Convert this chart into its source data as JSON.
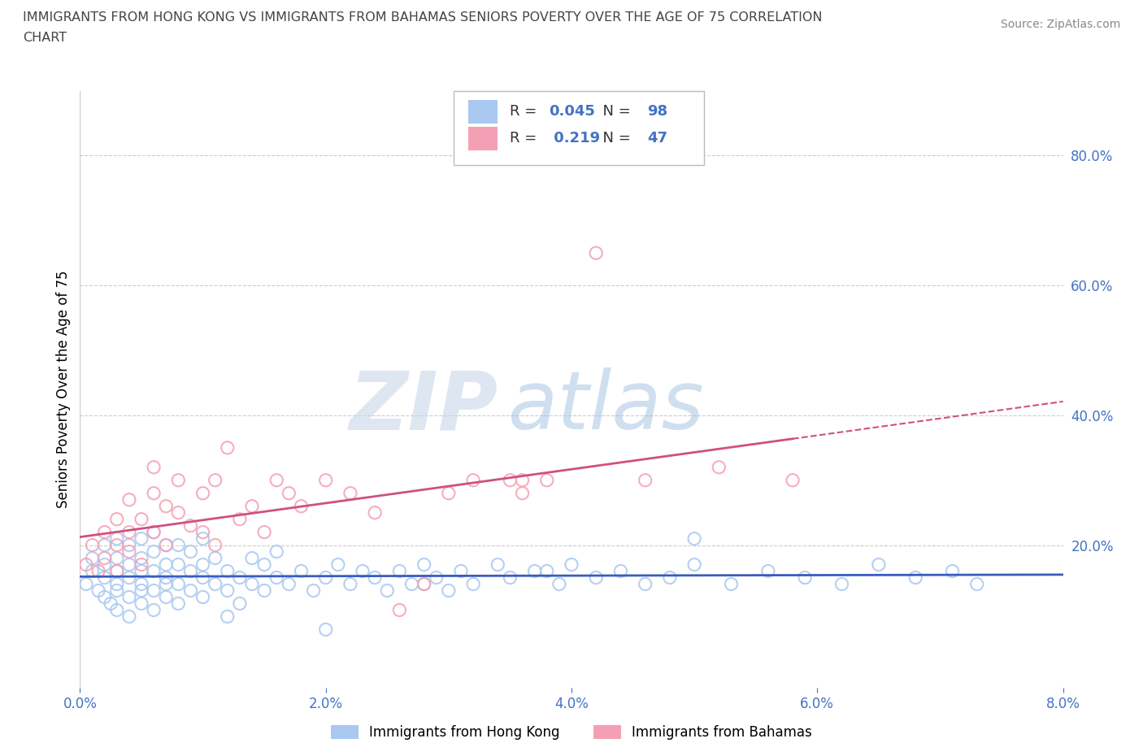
{
  "title_line1": "IMMIGRANTS FROM HONG KONG VS IMMIGRANTS FROM BAHAMAS SENIORS POVERTY OVER THE AGE OF 75 CORRELATION",
  "title_line2": "CHART",
  "source_text": "Source: ZipAtlas.com",
  "ylabel": "Seniors Poverty Over the Age of 75",
  "xlim": [
    0.0,
    0.08
  ],
  "ylim": [
    -0.02,
    0.9
  ],
  "xtick_labels": [
    "0.0%",
    "2.0%",
    "4.0%",
    "6.0%",
    "8.0%"
  ],
  "xtick_values": [
    0.0,
    0.02,
    0.04,
    0.06,
    0.08
  ],
  "ytick_labels": [
    "20.0%",
    "40.0%",
    "60.0%",
    "80.0%"
  ],
  "ytick_values": [
    0.2,
    0.4,
    0.6,
    0.8
  ],
  "hk_color": "#a8c8f0",
  "bah_color": "#f4a0b4",
  "hk_line_color": "#3a5bbf",
  "bah_line_color": "#d05080",
  "hk_R": 0.045,
  "hk_N": 98,
  "bah_R": 0.219,
  "bah_N": 47,
  "legend_label_hk": "Immigrants from Hong Kong",
  "legend_label_bah": "Immigrants from Bahamas",
  "watermark_zip": "ZIP",
  "watermark_atlas": "atlas",
  "background_color": "#ffffff",
  "grid_color": "#cccccc",
  "title_color": "#444444",
  "axis_label_color": "#4472c4",
  "hk_scatter_x": [
    0.0005,
    0.001,
    0.001,
    0.0015,
    0.002,
    0.002,
    0.002,
    0.002,
    0.0025,
    0.003,
    0.003,
    0.003,
    0.003,
    0.003,
    0.003,
    0.004,
    0.004,
    0.004,
    0.004,
    0.004,
    0.005,
    0.005,
    0.005,
    0.005,
    0.005,
    0.005,
    0.006,
    0.006,
    0.006,
    0.006,
    0.006,
    0.007,
    0.007,
    0.007,
    0.007,
    0.007,
    0.008,
    0.008,
    0.008,
    0.008,
    0.009,
    0.009,
    0.009,
    0.01,
    0.01,
    0.01,
    0.01,
    0.011,
    0.011,
    0.012,
    0.012,
    0.013,
    0.013,
    0.014,
    0.014,
    0.015,
    0.015,
    0.016,
    0.016,
    0.017,
    0.018,
    0.019,
    0.02,
    0.021,
    0.022,
    0.023,
    0.024,
    0.025,
    0.026,
    0.027,
    0.028,
    0.029,
    0.03,
    0.031,
    0.032,
    0.034,
    0.035,
    0.037,
    0.039,
    0.04,
    0.042,
    0.044,
    0.046,
    0.048,
    0.05,
    0.053,
    0.056,
    0.059,
    0.062,
    0.065,
    0.068,
    0.071,
    0.073,
    0.05,
    0.038,
    0.028,
    0.02,
    0.012
  ],
  "hk_scatter_y": [
    0.14,
    0.16,
    0.18,
    0.13,
    0.12,
    0.15,
    0.17,
    0.2,
    0.11,
    0.1,
    0.13,
    0.16,
    0.18,
    0.21,
    0.14,
    0.09,
    0.12,
    0.15,
    0.17,
    0.2,
    0.11,
    0.13,
    0.16,
    0.18,
    0.21,
    0.14,
    0.1,
    0.13,
    0.16,
    0.19,
    0.22,
    0.12,
    0.15,
    0.17,
    0.2,
    0.14,
    0.11,
    0.14,
    0.17,
    0.2,
    0.13,
    0.16,
    0.19,
    0.12,
    0.15,
    0.17,
    0.21,
    0.14,
    0.18,
    0.13,
    0.16,
    0.11,
    0.15,
    0.14,
    0.18,
    0.13,
    0.17,
    0.15,
    0.19,
    0.14,
    0.16,
    0.13,
    0.15,
    0.17,
    0.14,
    0.16,
    0.15,
    0.13,
    0.16,
    0.14,
    0.17,
    0.15,
    0.13,
    0.16,
    0.14,
    0.17,
    0.15,
    0.16,
    0.14,
    0.17,
    0.15,
    0.16,
    0.14,
    0.15,
    0.17,
    0.14,
    0.16,
    0.15,
    0.14,
    0.17,
    0.15,
    0.16,
    0.14,
    0.21,
    0.16,
    0.14,
    0.07,
    0.09
  ],
  "bah_scatter_x": [
    0.0005,
    0.001,
    0.0015,
    0.002,
    0.002,
    0.003,
    0.003,
    0.003,
    0.004,
    0.004,
    0.004,
    0.005,
    0.005,
    0.006,
    0.006,
    0.006,
    0.007,
    0.007,
    0.008,
    0.008,
    0.009,
    0.01,
    0.01,
    0.011,
    0.011,
    0.012,
    0.013,
    0.014,
    0.015,
    0.016,
    0.017,
    0.018,
    0.02,
    0.022,
    0.024,
    0.026,
    0.028,
    0.03,
    0.032,
    0.035,
    0.038,
    0.042,
    0.046,
    0.036,
    0.036,
    0.052,
    0.058
  ],
  "bah_scatter_y": [
    0.17,
    0.2,
    0.16,
    0.22,
    0.18,
    0.24,
    0.2,
    0.16,
    0.27,
    0.22,
    0.19,
    0.24,
    0.17,
    0.32,
    0.28,
    0.22,
    0.26,
    0.2,
    0.3,
    0.25,
    0.23,
    0.28,
    0.22,
    0.3,
    0.2,
    0.35,
    0.24,
    0.26,
    0.22,
    0.3,
    0.28,
    0.26,
    0.3,
    0.28,
    0.25,
    0.1,
    0.14,
    0.28,
    0.3,
    0.3,
    0.3,
    0.65,
    0.3,
    0.3,
    0.28,
    0.32,
    0.3
  ]
}
